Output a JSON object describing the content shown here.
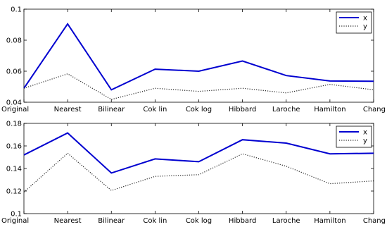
{
  "chart_data": [
    {
      "type": "line",
      "categories": [
        "Original",
        "Nearest",
        "Bilinear",
        "Cok lin",
        "Cok log",
        "Hibbard",
        "Laroche",
        "Hamilton",
        "Chang"
      ],
      "ylim": [
        0.04,
        0.1
      ],
      "yticks": [
        "0.04",
        "0.06",
        "0.08",
        "0.1"
      ],
      "xlabel": "",
      "ylabel": "",
      "legend_position": "top-right",
      "grid": false,
      "series": [
        {
          "name": "x",
          "values": [
            0.049,
            0.0905,
            0.048,
            0.0613,
            0.06,
            0.0666,
            0.0572,
            0.0537,
            0.0535
          ],
          "color": "#0000d0",
          "style": "solid"
        },
        {
          "name": "y",
          "values": [
            0.049,
            0.0583,
            0.0418,
            0.049,
            0.047,
            0.049,
            0.046,
            0.0515,
            0.048
          ],
          "color": "#222222",
          "style": "dotted"
        }
      ]
    },
    {
      "type": "line",
      "categories": [
        "Original",
        "Nearest",
        "Bilinear",
        "Cok lin",
        "Cok log",
        "Hibbard",
        "Laroche",
        "Hamilton",
        "Chang"
      ],
      "ylim": [
        0.1,
        0.18
      ],
      "yticks": [
        "0.1",
        "0.12",
        "0.14",
        "0.16",
        "0.18"
      ],
      "xlabel": "",
      "ylabel": "",
      "legend_position": "top-right",
      "grid": false,
      "series": [
        {
          "name": "x",
          "values": [
            0.152,
            0.1715,
            0.136,
            0.1485,
            0.146,
            0.1655,
            0.1625,
            0.153,
            0.1535
          ],
          "color": "#0000d0",
          "style": "solid"
        },
        {
          "name": "y",
          "values": [
            0.119,
            0.1535,
            0.1205,
            0.133,
            0.1345,
            0.153,
            0.142,
            0.1265,
            0.129
          ],
          "color": "#222222",
          "style": "dotted"
        }
      ]
    }
  ]
}
